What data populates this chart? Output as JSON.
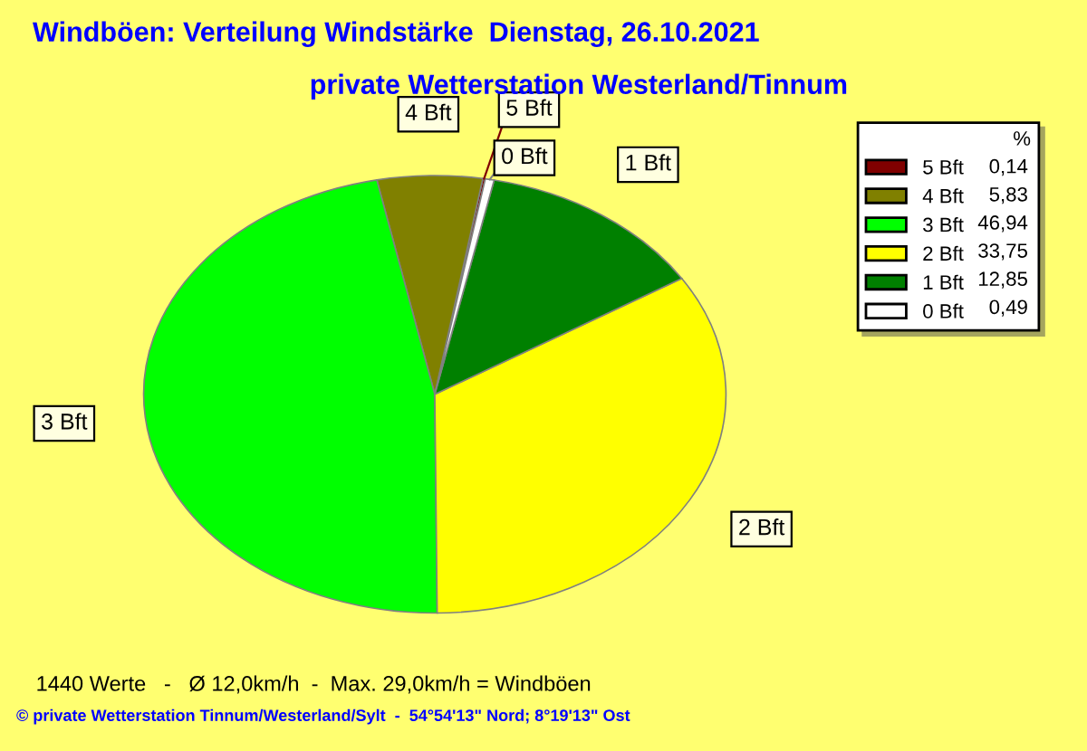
{
  "chart_data": {
    "type": "pie",
    "title": "Windböen: Verteilung Windstärke  Dienstag, 26.10.2021",
    "subtitle": "private Wetterstation Westerland/Tinnum",
    "categories": [
      "5 Bft",
      "4 Bft",
      "3 Bft",
      "2 Bft",
      "1 Bft",
      "0 Bft"
    ],
    "values": [
      0.14,
      5.83,
      46.94,
      33.75,
      12.85,
      0.49
    ],
    "value_labels": [
      "0,14",
      "5,83",
      "46,94",
      "33,75",
      "12,85",
      "0,49"
    ],
    "colors": [
      "#800000",
      "#808000",
      "#00ff00",
      "#ffff00",
      "#008000",
      "#ffffff"
    ],
    "legend_title": "%",
    "legend": "top right",
    "annotations": [
      "1440 Werte   -   Ø 12,0km/h  -  Max. 29,0km/h = Windböen",
      "© private Wetterstation Tinnum/Westerland/Sylt  -  54°54'13\" Nord; 8°19'13\" Ost"
    ]
  }
}
